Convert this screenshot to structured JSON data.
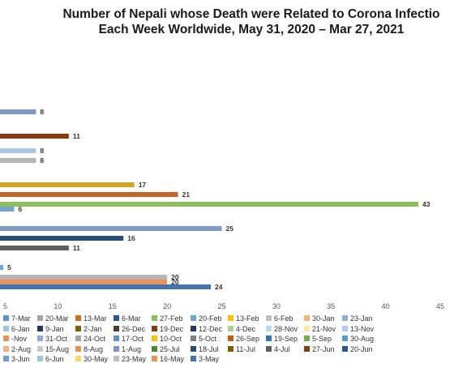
{
  "title_line1": "Number of Nepali whose Death were Related to Corona Infectio",
  "title_line2": "Each Week Worldwide, May 31, 2020 – Mar 27, 2021",
  "chart_data": {
    "type": "bar",
    "orientation": "horizontal",
    "title": "Number of Nepali whose Death were Related to Corona Infectio Each Week Worldwide, May 31, 2020 – Mar 27, 2021",
    "xlim": [
      5,
      45
    ],
    "xticks": [
      5,
      10,
      15,
      20,
      25,
      30,
      35,
      40,
      45
    ],
    "xtick_labels": [
      "5",
      "10",
      "15",
      "20",
      "25",
      "30",
      "35",
      "40",
      "45"
    ],
    "grid": false,
    "legend_position": "bottom",
    "bars": [
      {
        "value": 8,
        "label": "8",
        "color": "#7f96c9"
      },
      {
        "value": 11,
        "label": "11",
        "color": "#8b3a10"
      },
      {
        "value": 8,
        "label": "8",
        "color": "#a9c6e4"
      },
      {
        "value": 8,
        "label": "8",
        "color": "#b5b5b5"
      },
      {
        "value": 17,
        "label": "17",
        "color": "#d6a41c"
      },
      {
        "value": 21,
        "label": "21",
        "color": "#c4662a"
      },
      {
        "value": 43,
        "label": "43",
        "color": "#8bbf5a"
      },
      {
        "value": 6,
        "label": "6",
        "color": "#6fa6d6"
      },
      {
        "value": 25,
        "label": "25",
        "color": "#7f96c9"
      },
      {
        "value": 16,
        "label": "16",
        "color": "#284e78"
      },
      {
        "value": 11,
        "label": "11",
        "color": "#5e5e5e"
      },
      {
        "value": 5,
        "label": "5",
        "color": "#6fa6d6"
      },
      {
        "value": 20,
        "label": "20",
        "color": "#b5b5b5"
      },
      {
        "value": 20,
        "label": "20",
        "color": "#e9935a"
      },
      {
        "value": 24,
        "label": "24",
        "color": "#3f73b5"
      }
    ],
    "legend": [
      {
        "label": "7-Mar",
        "color": "#5b8fd0"
      },
      {
        "label": "20-Mar",
        "color": "#a5a5a5"
      },
      {
        "label": "13-Mar",
        "color": "#d46a1f"
      },
      {
        "label": "6-Mar",
        "color": "#2f5496"
      },
      {
        "label": "27-Feb",
        "color": "#8bbf5a"
      },
      {
        "label": "20-Feb",
        "color": "#6fa6d6"
      },
      {
        "label": "13-Feb",
        "color": "#ffc000"
      },
      {
        "label": "6-Feb",
        "color": "#bfbfbf"
      },
      {
        "label": "30-Jan",
        "color": "#f4b183"
      },
      {
        "label": "23-Jan",
        "color": "#8faadc"
      },
      {
        "label": "6-Jan",
        "color": "#9dc3e6"
      },
      {
        "label": "9-Jan",
        "color": "#1f3864"
      },
      {
        "label": "2-Jan",
        "color": "#7f6000"
      },
      {
        "label": "26-Dec",
        "color": "#404040"
      },
      {
        "label": "19-Dec",
        "color": "#843c0c"
      },
      {
        "label": "12-Dec",
        "color": "#203864"
      },
      {
        "label": "4-Dec",
        "color": "#a9d18e"
      },
      {
        "label": "28-Nov",
        "color": "#bdd7ee"
      },
      {
        "label": "21-Nov",
        "color": "#ffe699"
      },
      {
        "label": "13-Nov",
        "color": "#b4c7e7"
      },
      {
        "label": "-Nov",
        "color": "#e9935a"
      },
      {
        "label": "31-Oct",
        "color": "#8faadc"
      },
      {
        "label": "24-Oct",
        "color": "#a5a5a5"
      },
      {
        "label": "17-Oct",
        "color": "#5b8fd0"
      },
      {
        "label": "10-Oct",
        "color": "#ffc000"
      },
      {
        "label": "5-Oct",
        "color": "#7f7f7f"
      },
      {
        "label": "26-Sep",
        "color": "#c55a11"
      },
      {
        "label": "19-Sep",
        "color": "#2e75b6"
      },
      {
        "label": "5-Sep",
        "color": "#70ad47"
      },
      {
        "label": "30-Aug",
        "color": "#5b9bd5"
      },
      {
        "label": "2-Aug",
        "color": "#f4b183"
      },
      {
        "label": "15-Aug",
        "color": "#c9c9c9"
      },
      {
        "label": "8-Aug",
        "color": "#e9935a"
      },
      {
        "label": "1-Aug",
        "color": "#7f96c9"
      },
      {
        "label": "25-Jul",
        "color": "#548235"
      },
      {
        "label": "18-Jul",
        "color": "#284e78"
      },
      {
        "label": "11-Jul",
        "color": "#7f6000"
      },
      {
        "label": "4-Jul",
        "color": "#5e5e5e"
      },
      {
        "label": "27-Jun",
        "color": "#843c0c"
      },
      {
        "label": "20-Jun",
        "color": "#2f5496"
      },
      {
        "label": "3-Jun",
        "color": "#6f9bd1"
      },
      {
        "label": "6-Jun",
        "color": "#9dc3e6"
      },
      {
        "label": "30-May",
        "color": "#ffd966"
      },
      {
        "label": "23-May",
        "color": "#bfbfbf"
      },
      {
        "label": "16-May",
        "color": "#e9935a"
      },
      {
        "label": "3-May",
        "color": "#3f73b5"
      }
    ]
  }
}
